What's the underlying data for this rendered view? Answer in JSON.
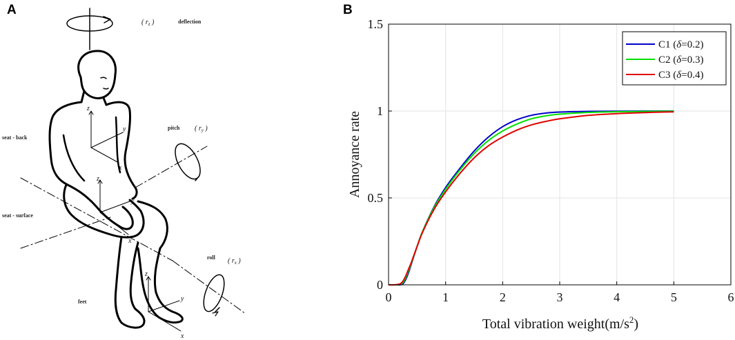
{
  "panel_a": {
    "letter": "A",
    "labels": {
      "deflection": "deflection",
      "rz": "( r",
      "rz_sub": "z",
      "rz_close": " )",
      "pitch": "pitch",
      "ry": "( r",
      "ry_sub": "y",
      "ry_close": " )",
      "roll": "roll",
      "rx": "( r",
      "rx_sub": "x",
      "rx_close": " )",
      "seat_back": "seat - back",
      "seat_surface": "seat - surface",
      "feet": "feet",
      "axis_z": "z",
      "axis_y": "y",
      "axis_x": "x"
    }
  },
  "panel_b": {
    "letter": "B"
  },
  "chart_data": {
    "type": "line",
    "title": "",
    "xlabel": "Total vibration weight(m/s",
    "xlabel_sup": "2",
    "xlabel_close": ")",
    "ylabel": "Annoyance rate",
    "xlim": [
      0,
      6
    ],
    "ylim": [
      0,
      1.5
    ],
    "xticks": [
      0,
      1,
      2,
      3,
      4,
      5,
      6
    ],
    "yticks": [
      0,
      0.5,
      1,
      1.5
    ],
    "xtick_labels": [
      "0",
      "1",
      "2",
      "3",
      "4",
      "5",
      "6"
    ],
    "ytick_labels": [
      "0",
      "0.5",
      "1",
      "1.5"
    ],
    "grid": true,
    "legend_position": "top-right",
    "x": [
      0,
      0.1,
      0.2,
      0.25,
      0.3,
      0.35,
      0.4,
      0.5,
      0.6,
      0.8,
      1.0,
      1.25,
      1.5,
      1.75,
      2.0,
      2.25,
      2.5,
      2.75,
      3.0,
      3.5,
      4.0,
      4.5,
      5.0
    ],
    "series": [
      {
        "name": "C1 (",
        "delta": "δ",
        "value": "=0.2)",
        "color": "#0000cc",
        "values": [
          0,
          0,
          0,
          0.005,
          0.03,
          0.07,
          0.12,
          0.22,
          0.31,
          0.45,
          0.56,
          0.67,
          0.77,
          0.85,
          0.91,
          0.95,
          0.975,
          0.988,
          0.994,
          0.998,
          0.999,
          1.0,
          1.0
        ]
      },
      {
        "name": "C2 (",
        "delta": "δ",
        "value": "=0.3)",
        "color": "#00e000",
        "values": [
          0,
          0,
          0.002,
          0.012,
          0.04,
          0.08,
          0.125,
          0.22,
          0.31,
          0.445,
          0.55,
          0.66,
          0.755,
          0.83,
          0.885,
          0.925,
          0.955,
          0.972,
          0.982,
          0.992,
          0.996,
          0.998,
          0.999
        ]
      },
      {
        "name": "C3 (",
        "delta": "δ",
        "value": "=0.4)",
        "color": "#e00000",
        "values": [
          0,
          0,
          0.005,
          0.02,
          0.05,
          0.09,
          0.13,
          0.22,
          0.305,
          0.435,
          0.535,
          0.64,
          0.73,
          0.8,
          0.85,
          0.89,
          0.92,
          0.94,
          0.955,
          0.975,
          0.985,
          0.991,
          0.995
        ]
      }
    ]
  }
}
